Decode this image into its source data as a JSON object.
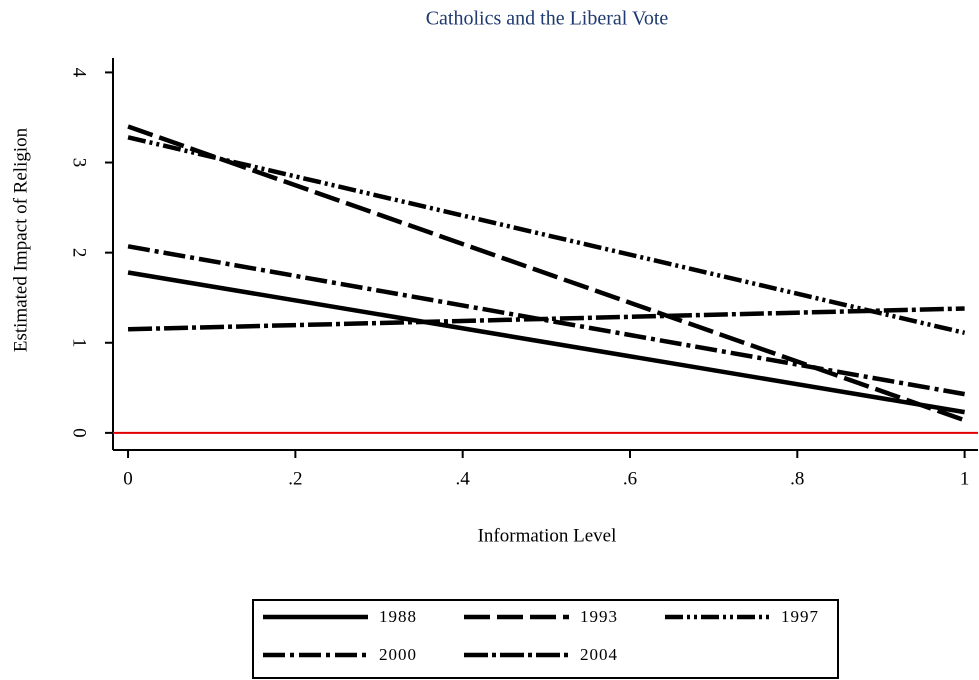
{
  "chart_data": {
    "type": "line",
    "title": "Catholics and the Liberal Vote",
    "x_label": "Information Level",
    "y_label": "Estimated Impact of Religion",
    "xlim": [
      -0.018,
      1.016
    ],
    "ylim": [
      -0.19,
      4.16
    ],
    "xticks": [
      0,
      {
        "value": 0.2,
        "label": ".2"
      },
      {
        "value": 0.4,
        "label": ".4"
      },
      {
        "value": 0.6,
        "label": ".6"
      },
      {
        "value": 0.8,
        "label": ".8"
      },
      1
    ],
    "yticks": [
      0,
      1,
      2,
      3,
      4
    ],
    "reference_line": {
      "value": 0,
      "color": "#e00000"
    },
    "x": [
      0,
      1
    ],
    "series": [
      {
        "name": "1988",
        "color": "#000000",
        "dash": "none",
        "values": [
          1.78,
          0.23
        ]
      },
      {
        "name": "1993",
        "color": "#000000",
        "dash": "26 7",
        "values": [
          3.4,
          0.14
        ]
      },
      {
        "name": "1997",
        "color": "#000000",
        "dash": "18 4 3 4 3 4",
        "values": [
          3.28,
          1.11
        ]
      },
      {
        "name": "2000",
        "color": "#000000",
        "dash": "22 5 4 5",
        "values": [
          2.07,
          0.43
        ]
      },
      {
        "name": "2004",
        "color": "#000000",
        "dash": "24 4 4 4",
        "values": [
          1.15,
          1.38
        ]
      }
    ]
  }
}
